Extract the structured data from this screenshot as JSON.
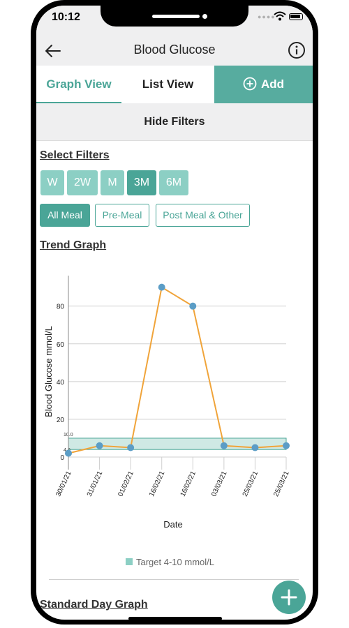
{
  "status_bar": {
    "time": "10:12"
  },
  "header": {
    "title": "Blood Glucose",
    "back_icon": "arrow-left-icon",
    "info_icon": "info-circle-icon"
  },
  "tabs": {
    "graph": "Graph View",
    "list": "List View",
    "add": "Add"
  },
  "filters_toggle": "Hide Filters",
  "filters": {
    "title": "Select Filters",
    "periods": [
      "W",
      "2W",
      "M",
      "3M",
      "6M"
    ],
    "selected_period": "3M",
    "meals": [
      "All Meal",
      "Pre-Meal",
      "Post Meal & Other"
    ],
    "selected_meal": "All Meal"
  },
  "trend_graph": {
    "title": "Trend Graph"
  },
  "standard_day_graph": {
    "title": "Standard Day Graph"
  },
  "colors": {
    "accent": "#4aa597",
    "accent_light": "#8ccfc4",
    "line": "#f0a43a",
    "point": "#5b9dc6",
    "target_band": "#cfe9e4"
  },
  "chart_data": {
    "type": "line",
    "xlabel": "Date",
    "ylabel": "Blood Glucose mmol/L",
    "categories": [
      "30/01/21",
      "31/01/21",
      "01/02/21",
      "16/02/21",
      "16/02/21",
      "03/03/21",
      "25/03/21",
      "25/03/21"
    ],
    "series": [
      {
        "values": [
          2,
          6,
          5,
          90,
          80,
          6,
          5,
          6
        ]
      }
    ],
    "yticks": [
      0,
      20,
      40,
      60,
      80
    ],
    "ylim": [
      0,
      98
    ],
    "target_band": {
      "low": 4,
      "high": 10,
      "low_label": "4.0",
      "high_label": "10.0"
    },
    "legend": [
      "Target 4-10 mmol/L"
    ],
    "legend_position": "bottom",
    "grid": true
  }
}
